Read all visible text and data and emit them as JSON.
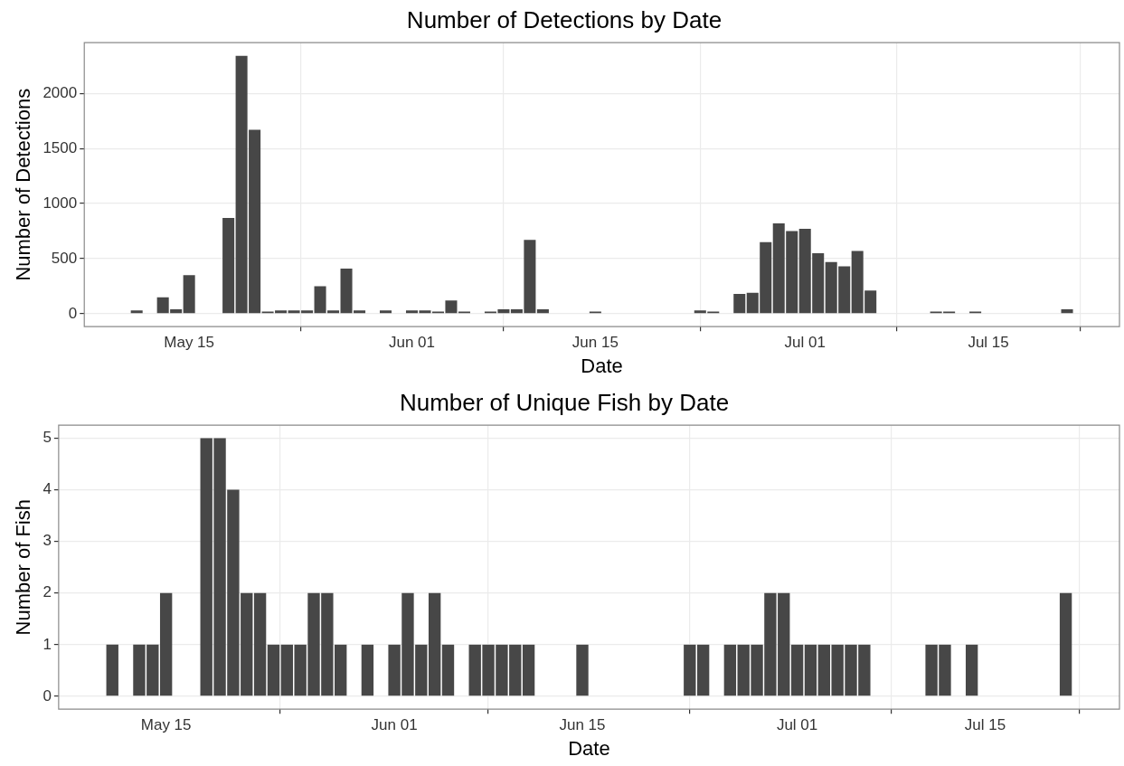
{
  "chart_data": [
    {
      "type": "bar",
      "title": "Number of Detections by Date",
      "xlabel": "Date",
      "ylabel": "Number of Detections",
      "color": "#474747",
      "x": [
        "--05-11",
        "--05-13",
        "--05-14",
        "--05-15",
        "--05-18",
        "--05-19",
        "--05-20",
        "--05-21",
        "--05-22",
        "--05-23",
        "--05-24",
        "--05-25",
        "--05-26",
        "--05-27",
        "--05-28",
        "--05-30",
        "--06-01",
        "--06-02",
        "--06-03",
        "--06-04",
        "--06-05",
        "--06-07",
        "--06-08",
        "--06-09",
        "--06-10",
        "--06-11",
        "--06-15",
        "--06-23",
        "--06-24",
        "--06-26",
        "--06-27",
        "--06-28",
        "--06-29",
        "--06-30",
        "--07-01",
        "--07-02",
        "--07-03",
        "--07-04",
        "--07-05",
        "--07-06",
        "--07-11",
        "--07-12",
        "--07-14",
        "--07-21"
      ],
      "values": [
        30,
        150,
        40,
        350,
        870,
        2340,
        1670,
        20,
        30,
        30,
        30,
        250,
        30,
        410,
        30,
        30,
        30,
        30,
        20,
        120,
        20,
        20,
        40,
        40,
        670,
        40,
        20,
        30,
        20,
        180,
        190,
        650,
        820,
        750,
        770,
        550,
        470,
        430,
        570,
        210,
        20,
        20,
        20,
        40
      ],
      "xlim": [
        "--05-07",
        "--07-25"
      ],
      "xticks": [
        {
          "value": "--05-15",
          "label": "May 15"
        },
        {
          "value": "--06-01",
          "label": "Jun 01"
        },
        {
          "value": "--06-15",
          "label": "Jun 15"
        },
        {
          "value": "--07-01",
          "label": "Jul 01"
        },
        {
          "value": "--07-15",
          "label": "Jul 15"
        }
      ],
      "ylim": [
        -117,
        2460
      ],
      "yticks": [
        0,
        500,
        1000,
        1500,
        2000
      ],
      "grid": true
    },
    {
      "type": "bar",
      "title": "Number of Unique Fish by Date",
      "xlabel": "Date",
      "ylabel": "Number of Fish",
      "color": "#474747",
      "x": [
        "--05-11",
        "--05-13",
        "--05-14",
        "--05-15",
        "--05-18",
        "--05-19",
        "--05-20",
        "--05-21",
        "--05-22",
        "--05-23",
        "--05-24",
        "--05-25",
        "--05-26",
        "--05-27",
        "--05-28",
        "--05-30",
        "--06-01",
        "--06-02",
        "--06-03",
        "--06-04",
        "--06-05",
        "--06-07",
        "--06-08",
        "--06-09",
        "--06-10",
        "--06-11",
        "--06-15",
        "--06-23",
        "--06-24",
        "--06-26",
        "--06-27",
        "--06-28",
        "--06-29",
        "--06-30",
        "--07-01",
        "--07-02",
        "--07-03",
        "--07-04",
        "--07-05",
        "--07-06",
        "--07-11",
        "--07-12",
        "--07-14",
        "--07-21"
      ],
      "values": [
        1,
        1,
        1,
        2,
        5,
        5,
        4,
        2,
        2,
        1,
        1,
        1,
        2,
        2,
        1,
        1,
        1,
        2,
        1,
        2,
        1,
        1,
        1,
        1,
        1,
        1,
        1,
        1,
        1,
        1,
        1,
        1,
        2,
        2,
        1,
        1,
        1,
        1,
        1,
        1,
        1,
        1,
        1,
        2
      ],
      "xlim": [
        "--05-07",
        "--07-25"
      ],
      "xticks": [
        {
          "value": "--05-15",
          "label": "May 15"
        },
        {
          "value": "--06-01",
          "label": "Jun 01"
        },
        {
          "value": "--06-15",
          "label": "Jun 15"
        },
        {
          "value": "--07-01",
          "label": "Jul 01"
        },
        {
          "value": "--07-15",
          "label": "Jul 15"
        }
      ],
      "ylim": [
        -0.25,
        5.25
      ],
      "yticks": [
        0,
        1,
        2,
        3,
        4,
        5
      ],
      "grid": true
    }
  ]
}
